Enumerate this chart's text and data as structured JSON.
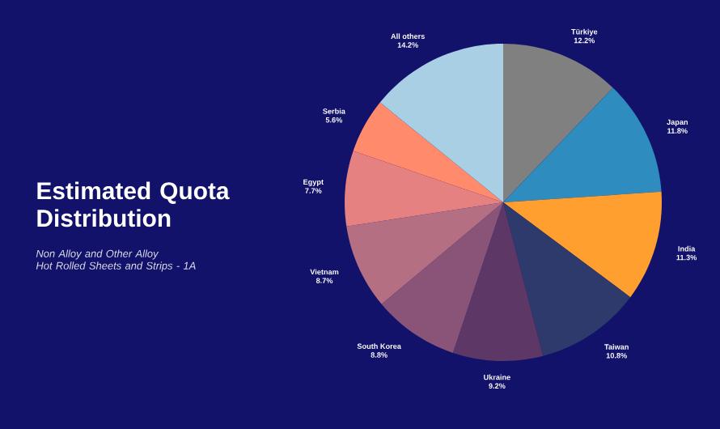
{
  "chart_data": {
    "type": "pie",
    "title": "Estimated Quota Distribution",
    "subtitle": "Non Alloy and Other Alloy\nHot Rolled Sheets and Strips - 1A",
    "categories": [
      "Türkiye",
      "Japan",
      "India",
      "Taiwan",
      "Ukraine",
      "South Korea",
      "Vietnam",
      "Egypt",
      "Serbia",
      "All others"
    ],
    "values": [
      12.2,
      11.8,
      11.3,
      10.8,
      9.2,
      8.8,
      8.7,
      7.7,
      5.6,
      14.2
    ],
    "value_labels": [
      "12.2%",
      "11.8%",
      "11.3%",
      "10.8%",
      "9.2%",
      "8.8%",
      "8.7%",
      "7.7%",
      "5.6%",
      "14.2%"
    ],
    "colors": [
      "#808080",
      "#2f8cbf",
      "#ff9f2f",
      "#2e3a6c",
      "#5d3866",
      "#8a5478",
      "#b56f83",
      "#e58181",
      "#ff8b6c",
      "#a8cfe4"
    ]
  }
}
